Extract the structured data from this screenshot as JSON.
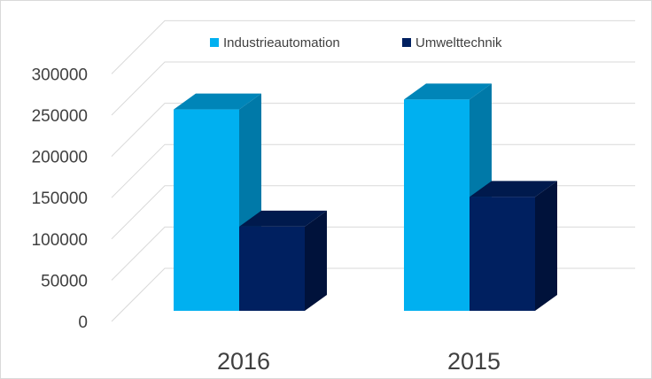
{
  "chart_data": {
    "type": "bar",
    "title": "",
    "xlabel": "",
    "ylabel": "",
    "categories": [
      "2016",
      "2015"
    ],
    "series": [
      {
        "name": "Industrieautomation",
        "values": [
          244000,
          256000
        ],
        "color": "#00b0f0",
        "side_color": "#0079a8",
        "top_color": "#0085b8"
      },
      {
        "name": "Umwelttechnik",
        "values": [
          102000,
          138000
        ],
        "color": "#002060",
        "side_color": "#00123b",
        "top_color": "#001a4d"
      }
    ],
    "ylim": [
      0,
      300000
    ],
    "yticks": [
      {
        "value": 0,
        "label": "0"
      },
      {
        "value": 50000,
        "label": "50000"
      },
      {
        "value": 100000,
        "label": "100000"
      },
      {
        "value": 150000,
        "label": "150000"
      },
      {
        "value": 200000,
        "label": "200000"
      },
      {
        "value": 250000,
        "label": "250000"
      },
      {
        "value": 300000,
        "label": "300000"
      }
    ],
    "grid": true,
    "legend_position": "top"
  },
  "colors": {
    "grid": "#d9d9d9",
    "text": "#404040"
  }
}
